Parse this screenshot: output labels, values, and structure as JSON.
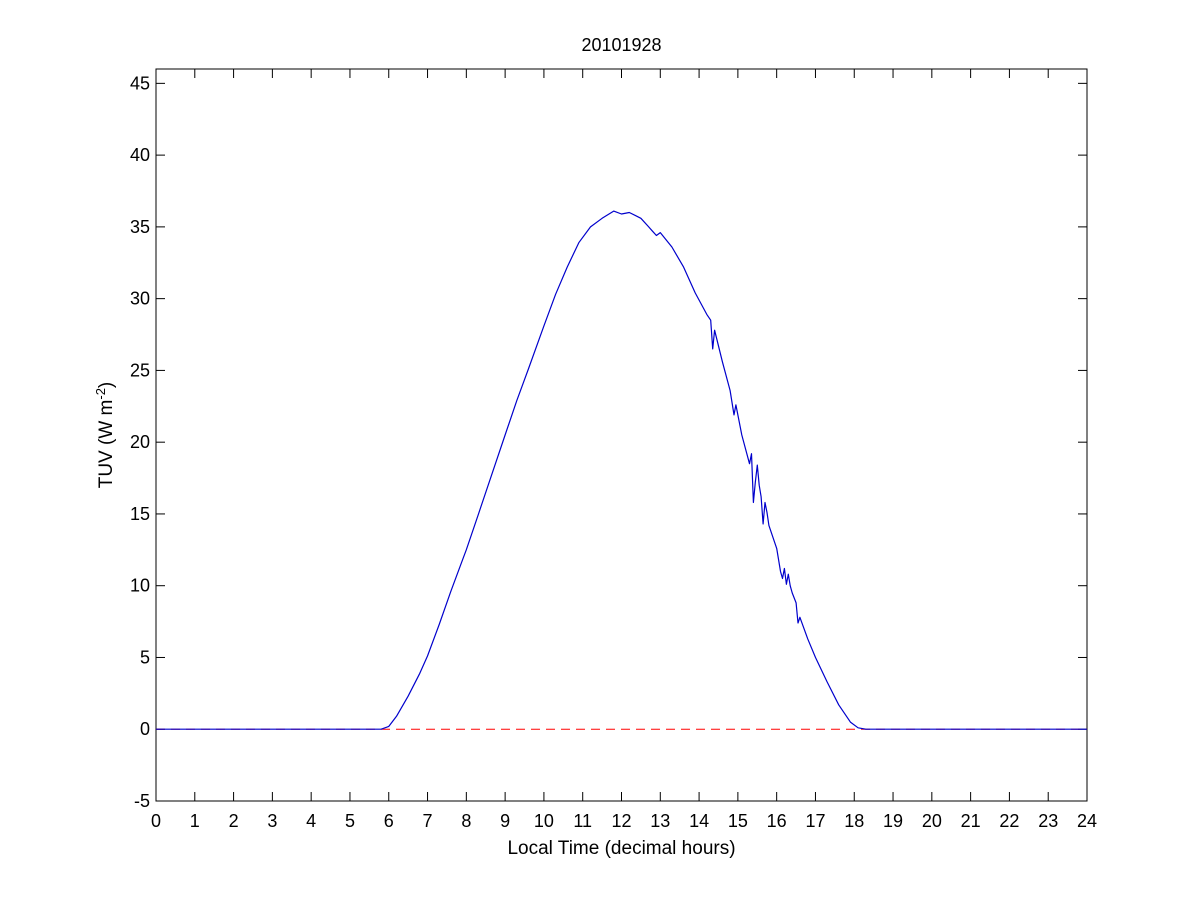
{
  "chart_data": {
    "type": "line",
    "title": "20101928",
    "xlabel": "Local Time (decimal hours)",
    "ylabel_main": "TUV (W m",
    "ylabel_sup": "-2",
    "ylabel_close": ")",
    "xlim": [
      0,
      24
    ],
    "ylim": [
      -5,
      46
    ],
    "xticks": [
      "0",
      "1",
      "2",
      "3",
      "4",
      "5",
      "6",
      "7",
      "8",
      "9",
      "10",
      "11",
      "12",
      "13",
      "14",
      "15",
      "16",
      "17",
      "18",
      "19",
      "20",
      "21",
      "22",
      "23",
      "24"
    ],
    "yticks": [
      "-5",
      "0",
      "5",
      "10",
      "15",
      "20",
      "25",
      "30",
      "35",
      "40",
      "45"
    ],
    "grid": false,
    "colors": {
      "series": "#0000cc",
      "baseline": "#ff0000",
      "axes": "#000000",
      "background": "#ffffff"
    },
    "series": [
      {
        "x": [
          0,
          5.8,
          6.0,
          6.2,
          6.5,
          6.8,
          7.0,
          7.3,
          7.6,
          7.9,
          8.0,
          8.3,
          8.6,
          9.0,
          9.3,
          9.6,
          10.0,
          10.3,
          10.6,
          10.9,
          11.2,
          11.5,
          11.8,
          12.0,
          12.2,
          12.5,
          12.7,
          12.8,
          12.9,
          13.0,
          13.3,
          13.6,
          13.9,
          14.2,
          14.3,
          14.35,
          14.4,
          14.6,
          14.8,
          14.9,
          14.95,
          15.1,
          15.3,
          15.35,
          15.4,
          15.45,
          15.5,
          15.55,
          15.6,
          15.65,
          15.7,
          15.75,
          15.8,
          16.0,
          16.1,
          16.15,
          16.2,
          16.25,
          16.3,
          16.35,
          16.4,
          16.5,
          16.55,
          16.6,
          16.8,
          17.0,
          17.3,
          17.6,
          17.9,
          18.1,
          18.3,
          24
        ],
        "y": [
          0,
          0,
          0.2,
          0.9,
          2.3,
          3.9,
          5.1,
          7.3,
          9.6,
          11.8,
          12.5,
          14.9,
          17.3,
          20.5,
          22.9,
          25.1,
          28.1,
          30.3,
          32.2,
          33.9,
          35.0,
          35.6,
          36.1,
          35.9,
          36.0,
          35.6,
          35.0,
          34.7,
          34.4,
          34.6,
          33.6,
          32.2,
          30.4,
          28.9,
          28.5,
          26.5,
          27.8,
          25.6,
          23.6,
          21.9,
          22.6,
          20.5,
          18.5,
          19.2,
          15.8,
          17.2,
          18.4,
          17.0,
          16.2,
          14.3,
          15.8,
          15.1,
          14.2,
          12.6,
          11.0,
          10.5,
          11.2,
          10.1,
          10.8,
          10.0,
          9.5,
          8.8,
          7.4,
          7.8,
          6.3,
          5.0,
          3.3,
          1.7,
          0.5,
          0.1,
          0,
          0
        ]
      }
    ],
    "baseline": {
      "y": 0,
      "style": "dashed"
    }
  }
}
